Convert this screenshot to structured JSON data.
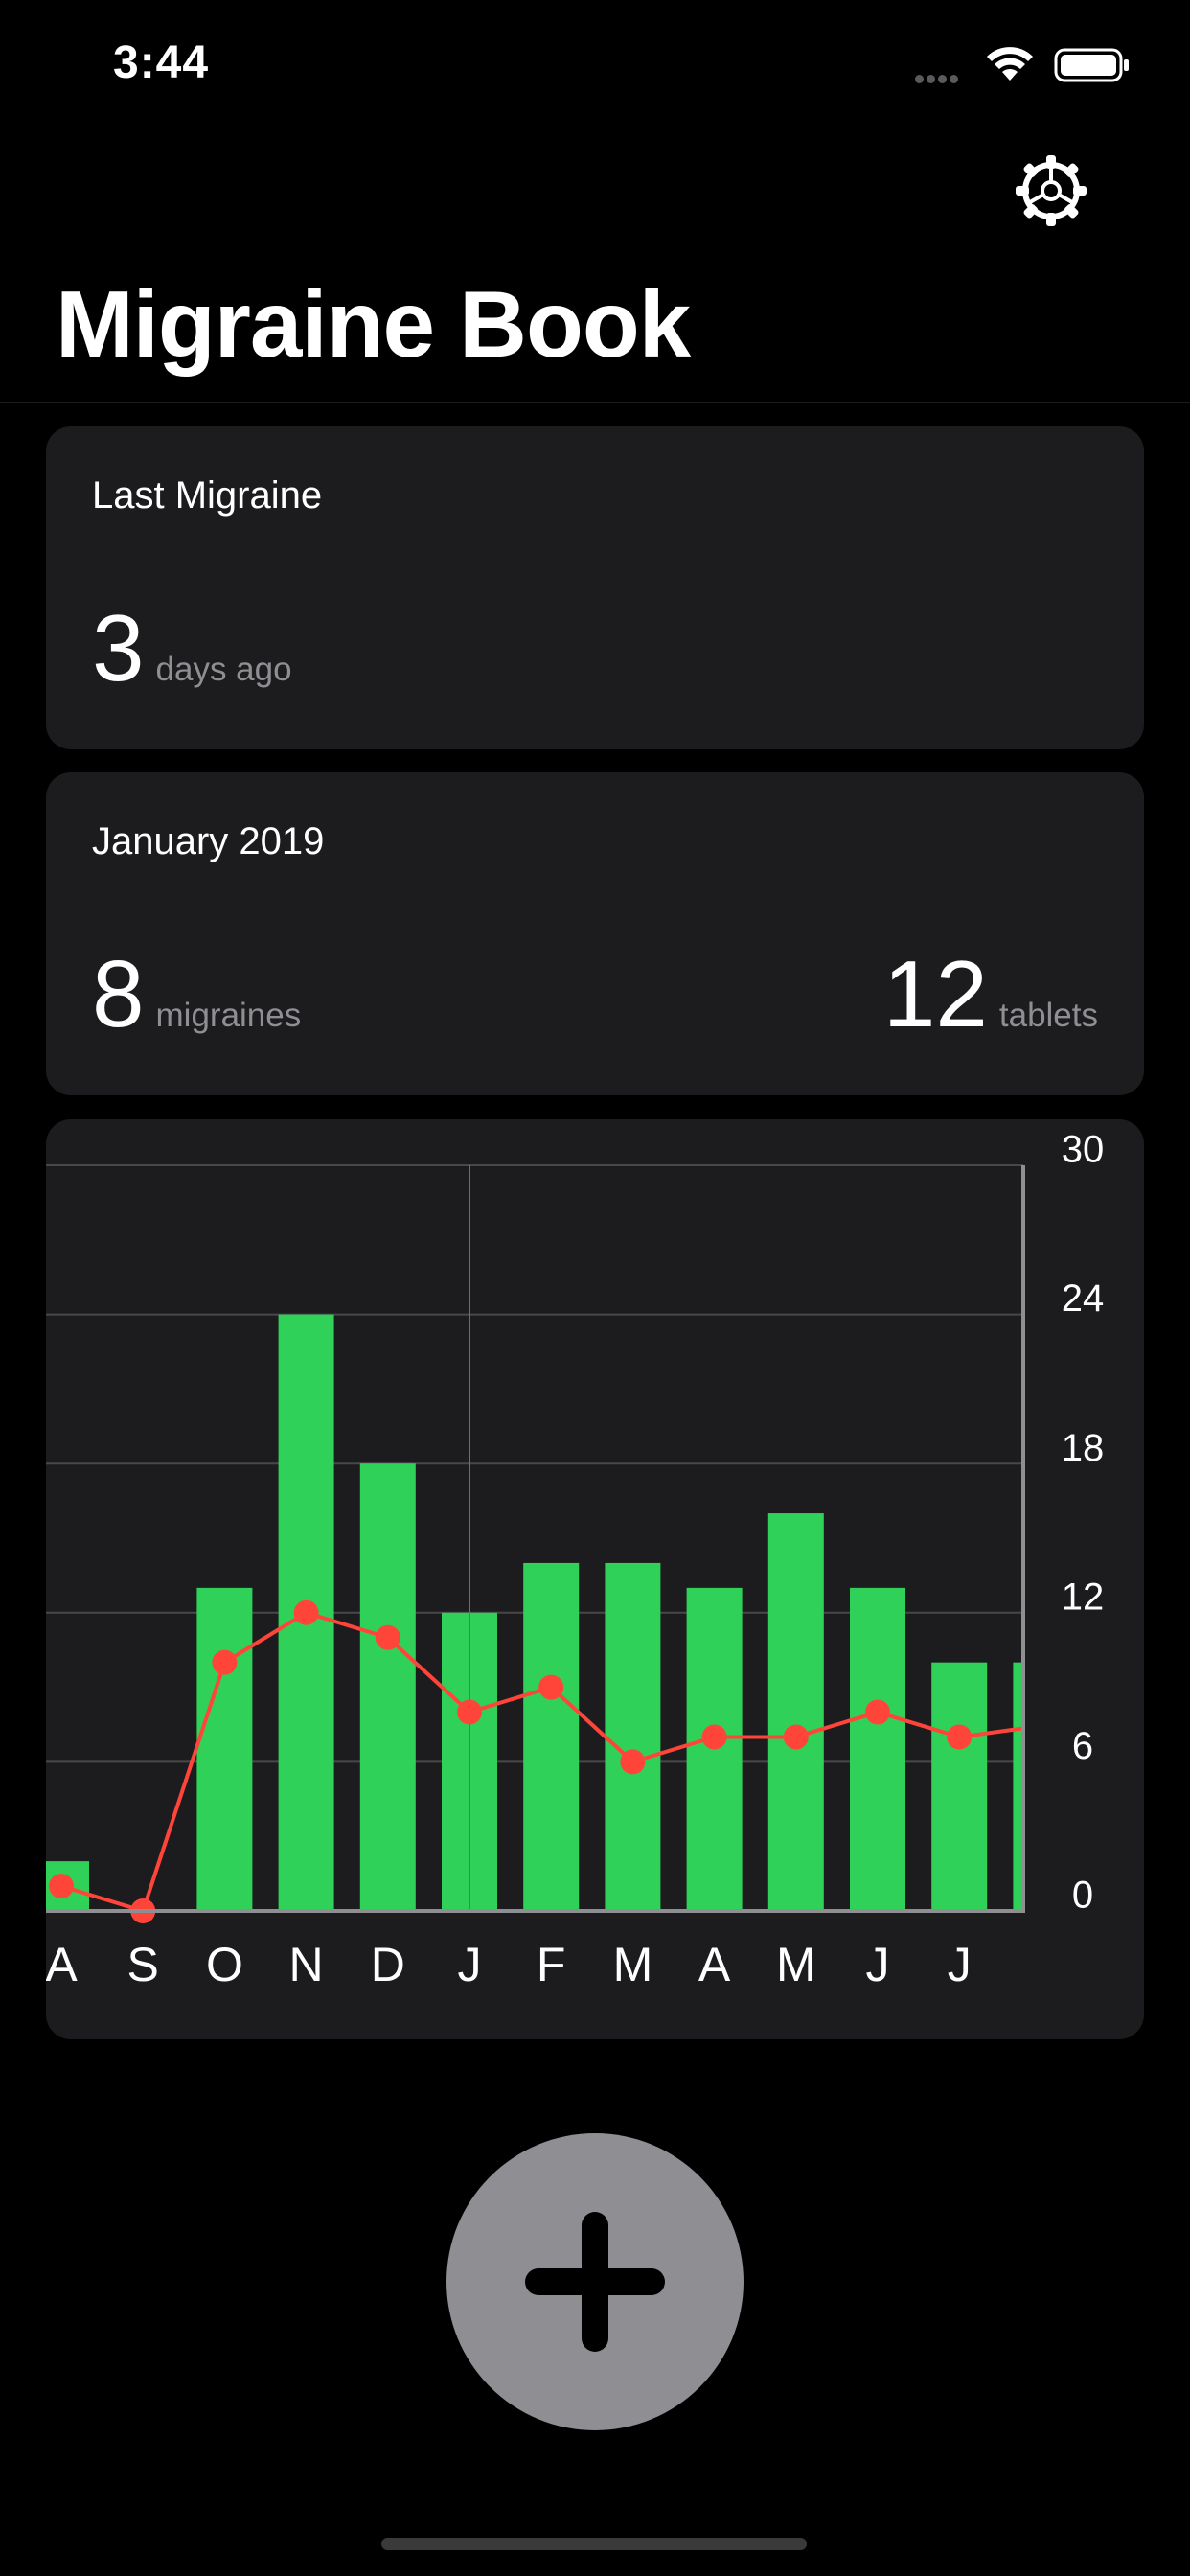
{
  "status_bar": {
    "time": "3:44"
  },
  "header": {
    "title": "Migraine Book",
    "settings_icon": "gear-icon"
  },
  "last_migraine": {
    "title": "Last Migraine",
    "value": "3",
    "unit": "days ago"
  },
  "month_summary": {
    "title": "January 2019",
    "migraines_value": "8",
    "migraines_unit": "migraines",
    "tablets_value": "12",
    "tablets_unit": "tablets"
  },
  "chart_data": {
    "type": "bar",
    "categories": [
      "A",
      "S",
      "O",
      "N",
      "D",
      "J",
      "F",
      "M",
      "A",
      "M",
      "J",
      "J"
    ],
    "series": [
      {
        "type": "bar",
        "values": [
          2,
          0,
          13,
          24,
          18,
          12,
          14,
          14,
          13,
          16,
          13,
          10
        ]
      },
      {
        "type": "line",
        "values": [
          1,
          0,
          10,
          12,
          11,
          8,
          9,
          6,
          7,
          7,
          8,
          7
        ]
      }
    ],
    "y_ticks": [
      "30",
      "24",
      "18",
      "12",
      "6",
      "0"
    ],
    "ylim": [
      0,
      30
    ],
    "highlighted_category": "J",
    "colors": {
      "bars": "#30d158",
      "line": "#ff453a",
      "highlight": "#0a84ff"
    }
  },
  "add_button": {
    "icon": "plus-icon"
  }
}
